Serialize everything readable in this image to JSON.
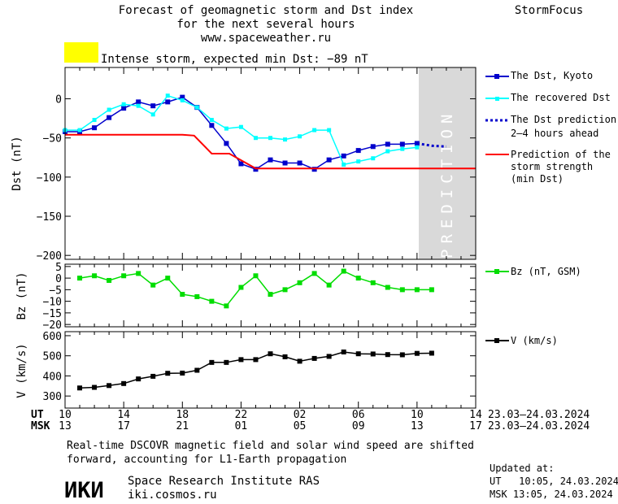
{
  "header": {
    "title_line1": "Forecast of geomagnetic storm and Dst index",
    "title_line2": "for the next several hours",
    "url": "www.spaceweather.ru",
    "brand": "StormFocus"
  },
  "status": {
    "color": "#ffff00",
    "text": "Intense storm, expected min Dst: −89 nT"
  },
  "prediction_watermark": "PREDICTION",
  "colors": {
    "dst_kyoto": "#0000cc",
    "dst_recovered": "#00ffff",
    "dst_prediction": "#0000cc",
    "storm_strength": "#ff0000",
    "bz": "#00dd00",
    "v": "#000000",
    "prediction_zone": "#d9d9d9"
  },
  "legend": {
    "dst_kyoto": "The Dst, Kyoto",
    "dst_recovered": "The recovered Dst",
    "dst_prediction_1": "The Dst prediction",
    "dst_prediction_2": "2–4 hours ahead",
    "strength_1": "Prediction of the",
    "strength_2": "storm strength",
    "strength_3": "(min Dst)",
    "bz": "Bz (nT, GSM)",
    "v": "V (km/s)"
  },
  "time_axis": {
    "ut_label": "UT",
    "msk_label": "MSK",
    "ut_ticks": [
      "10",
      "14",
      "18",
      "22",
      "02",
      "06",
      "10",
      "14"
    ],
    "msk_ticks": [
      "13",
      "17",
      "21",
      "01",
      "05",
      "09",
      "13",
      "17"
    ],
    "date_range": "23.03–24.03.2024"
  },
  "footer": {
    "note_line1": "Real-time DSCOVR magnetic field and solar wind speed are shifted",
    "note_line2": "forward, accounting for L1-Earth propagation",
    "logo": "ИКИ",
    "institute": "Space Research Institute RAS",
    "site": "iki.cosmos.ru",
    "updated_label": "Updated at:",
    "updated_ut": "UT   10:05, 24.03.2024",
    "updated_msk": "MSK 13:05, 24.03.2024"
  },
  "chart_data": [
    {
      "type": "line",
      "ylabel": "Dst (nT)",
      "xlim": [
        0,
        28
      ],
      "ylim": [
        -205,
        40
      ],
      "yticks": [
        0,
        -50,
        -100,
        -150,
        -200
      ],
      "ytick_labels": [
        "0",
        "−50",
        "−100",
        "−150",
        "−200"
      ],
      "prediction_from": 24,
      "series": [
        {
          "name": "The Dst, Kyoto",
          "x": [
            0,
            1,
            2,
            3,
            4,
            5,
            6,
            7,
            8,
            9,
            10,
            11,
            12,
            13,
            14,
            15,
            16,
            17,
            18,
            19,
            20,
            21,
            22,
            23,
            24
          ],
          "y": [
            -42,
            -42,
            -37,
            -24,
            -12,
            -4,
            -9,
            -4,
            2,
            -11,
            -34,
            -57,
            -83,
            -90,
            -78,
            -82,
            -82,
            -90,
            -78,
            -73,
            -66,
            -61,
            -58,
            -58,
            -57
          ]
        },
        {
          "name": "The recovered Dst",
          "x": [
            0,
            1,
            2,
            3,
            4,
            5,
            6,
            7,
            8,
            9,
            10,
            11,
            12,
            13,
            14,
            15,
            16,
            17,
            18,
            19,
            20,
            21,
            22,
            23,
            24
          ],
          "y": [
            -40,
            -40,
            -27,
            -14,
            -7,
            -9,
            -20,
            4,
            -2,
            -11,
            -27,
            -38,
            -36,
            -50,
            -50,
            -52,
            -48,
            -40,
            -40,
            -84,
            -80,
            -76,
            -67,
            -64,
            -62
          ]
        },
        {
          "name": "The Dst prediction 2–4 hours ahead",
          "x": [
            24,
            25,
            26
          ],
          "y": [
            -57,
            -60,
            -61
          ]
        },
        {
          "name": "Prediction of the storm strength (min Dst)",
          "x": [
            0,
            8,
            8.8,
            10,
            11.2,
            13,
            28
          ],
          "y": [
            -46,
            -46,
            -47,
            -70,
            -70,
            -89,
            -89
          ]
        }
      ]
    },
    {
      "type": "line",
      "ylabel": "Bz (nT)",
      "xlim": [
        0,
        28
      ],
      "ylim": [
        -21,
        6
      ],
      "yticks": [
        5,
        0,
        -5,
        -10,
        -15,
        -20
      ],
      "ytick_labels": [
        "5",
        "0",
        "−5",
        "−10",
        "−15",
        "−20"
      ],
      "series": [
        {
          "name": "Bz (nT, GSM)",
          "x": [
            1,
            2,
            3,
            4,
            5,
            6,
            7,
            8,
            9,
            10,
            11,
            12,
            13,
            14,
            15,
            16,
            17,
            18,
            19,
            20,
            21,
            22,
            23,
            24,
            25
          ],
          "y": [
            0,
            1,
            -1,
            1,
            2,
            -3,
            0,
            -7,
            -8,
            -10,
            -12,
            -4,
            1,
            -7,
            -5,
            -2,
            2,
            -3,
            3,
            0,
            -2,
            -4,
            -5,
            -5,
            -5
          ]
        }
      ]
    },
    {
      "type": "line",
      "ylabel": "V (km/s)",
      "xlim": [
        0,
        28
      ],
      "ylim": [
        240,
        620
      ],
      "yticks": [
        600,
        500,
        400,
        300
      ],
      "ytick_labels": [
        "600",
        "500",
        "400",
        "300"
      ],
      "series": [
        {
          "name": "V (km/s)",
          "x": [
            1,
            2,
            3,
            4,
            5,
            6,
            7,
            8,
            9,
            10,
            11,
            12,
            13,
            14,
            15,
            16,
            17,
            18,
            19,
            20,
            21,
            22,
            23,
            24,
            25
          ],
          "y": [
            340,
            343,
            352,
            362,
            385,
            398,
            413,
            414,
            428,
            467,
            467,
            481,
            481,
            510,
            495,
            473,
            487,
            497,
            519,
            510,
            509,
            506,
            505,
            512,
            513
          ]
        }
      ]
    }
  ]
}
